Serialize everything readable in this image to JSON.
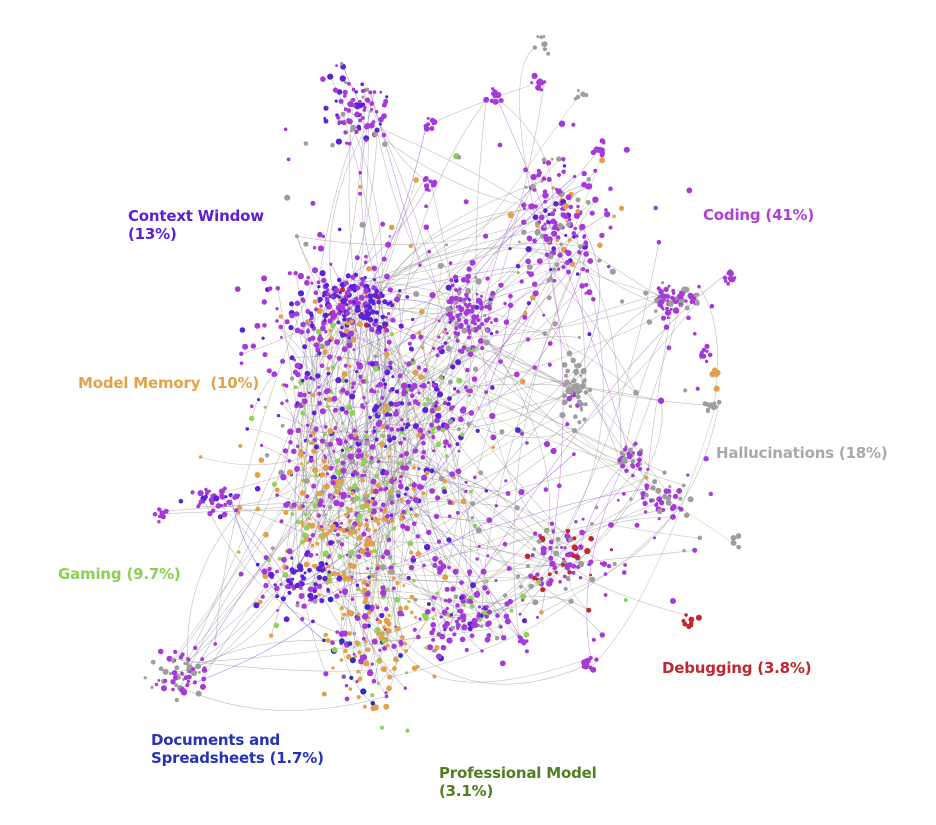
{
  "labels": {
    "coding": {
      "line1": "Coding (41%)",
      "color": "#b13fd6"
    },
    "context_window": {
      "line1": "Context Window",
      "line2": "(13%)",
      "color": "#5a1fd6"
    },
    "model_memory": {
      "line1": "Model Memory  (10%)",
      "color": "#e3a24a"
    },
    "hallucinations": {
      "line1": "Hallucinations (18%)",
      "color": "#a9a9a9"
    },
    "gaming": {
      "line1": "Gaming (9.7%)",
      "color": "#8ccf52"
    },
    "debugging": {
      "line1": "Debugging (3.8%)",
      "color": "#c0282f"
    },
    "documents": {
      "line1": "Documents and",
      "line2": "Spreadsheets (1.7%)",
      "color": "#2632b8"
    },
    "professional": {
      "line1": "Professional Model",
      "line2": "(3.1%)",
      "color": "#4f7f1f"
    }
  },
  "palette": {
    "purple": "#a63ad8",
    "violet": "#5b22d9",
    "gray": "#9e9e9e",
    "orange": "#e2a04b",
    "green": "#8fd15a",
    "red": "#c4262e",
    "blue": "#2a32c4",
    "darkgreen": "#4a7f1f",
    "edge": "#8a8a8a"
  }
}
